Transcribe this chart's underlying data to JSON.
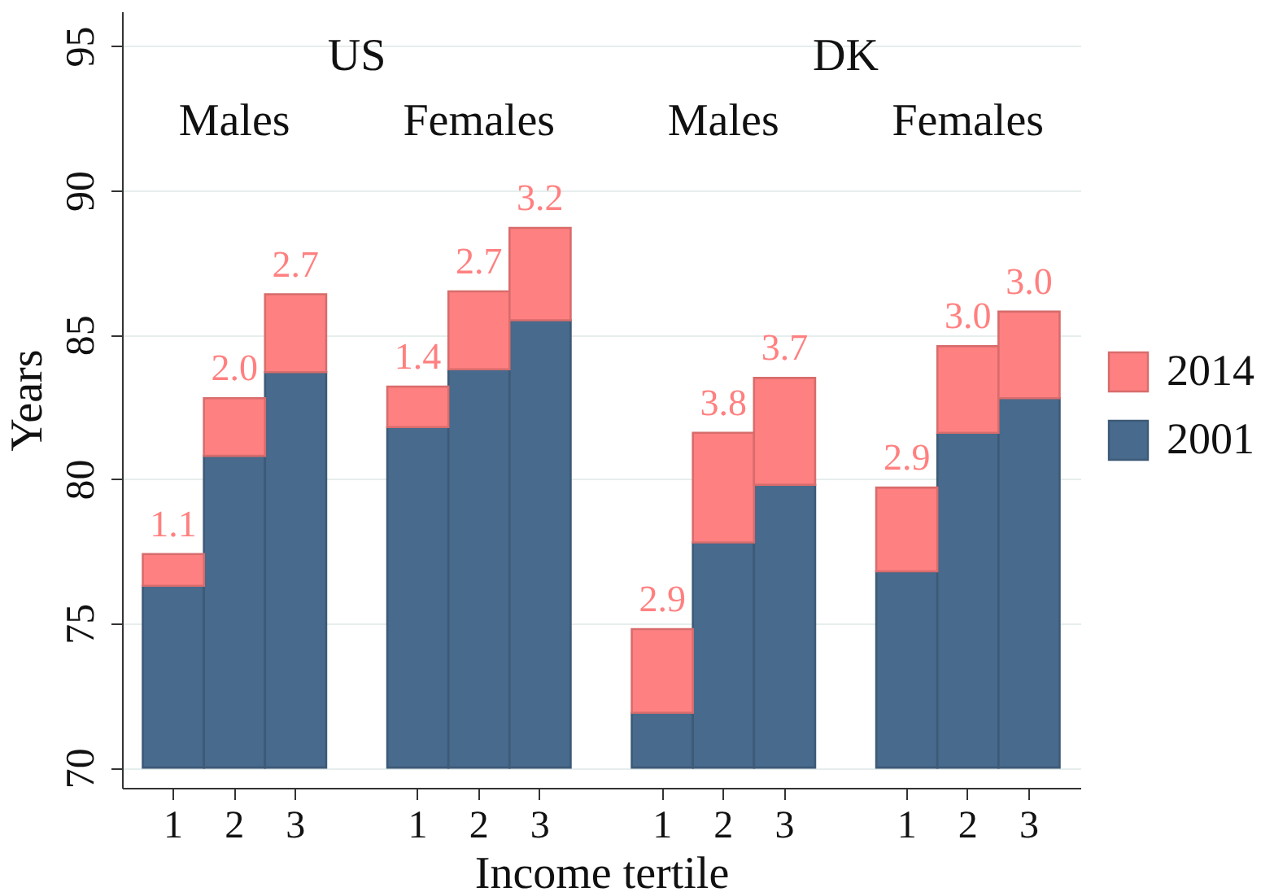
{
  "chart_data": {
    "type": "bar",
    "xlabel": "Income tertile",
    "ylabel": "Years",
    "categories": [
      "1",
      "2",
      "3",
      null,
      "1",
      "2",
      "3",
      null,
      "1",
      "2",
      "3",
      null,
      "1",
      "2",
      "3"
    ],
    "ylim": [
      69.3,
      96.2
    ],
    "yticks": [
      70,
      75,
      80,
      85,
      90,
      95
    ],
    "grid": "y",
    "series": [
      {
        "name": "2001",
        "color": "#486a8c",
        "base": [
          70,
          70,
          70,
          null,
          70,
          70,
          70,
          null,
          70,
          70,
          70,
          null,
          70,
          70,
          70
        ],
        "values": [
          6.3,
          10.8,
          13.7,
          null,
          11.8,
          13.8,
          15.5,
          null,
          1.9,
          7.8,
          9.8,
          null,
          6.8,
          11.6,
          12.8
        ]
      },
      {
        "name": "2014",
        "color": "#ff8080",
        "base": [
          76.3,
          80.8,
          83.7,
          null,
          81.8,
          83.8,
          85.5,
          null,
          71.9,
          77.8,
          79.8,
          null,
          76.8,
          81.6,
          82.8
        ],
        "values": [
          1.1,
          2.0,
          2.7,
          null,
          1.4,
          2.7,
          3.2,
          null,
          2.9,
          3.8,
          3.7,
          null,
          2.9,
          3.0,
          3.0
        ],
        "value_labels": [
          "1.1",
          "2.0",
          "2.7",
          null,
          "1.4",
          "2.7",
          "3.2",
          null,
          "2.9",
          "3.8",
          "3.7",
          null,
          "2.9",
          "3.0",
          "3.0"
        ]
      }
    ],
    "legend": "right",
    "annotations": [
      "US",
      "DK",
      "Males",
      "Females",
      "Males",
      "Females"
    ]
  }
}
